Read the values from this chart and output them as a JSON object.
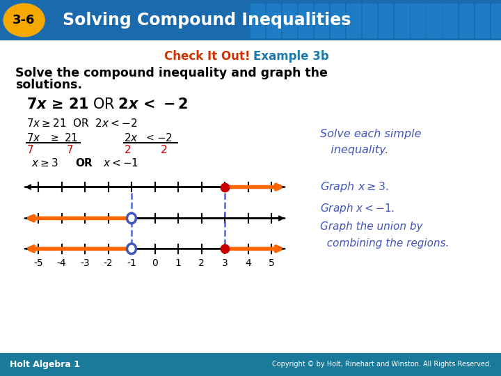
{
  "title_badge_text": "3-6",
  "title_text": "Solving Compound Inequalities",
  "header_bg_color": "#1a6aad",
  "badge_bg_color": "#f5a800",
  "badge_text_color": "#000000",
  "title_text_color": "#ffffff",
  "body_bg_color": "#ffffff",
  "check_it_out_color": "#cc3300",
  "example_color": "#1a7aad",
  "subtitle": "Check It Out! Example 3b",
  "instruction_color": "#000000",
  "step1_line3_color": "#cc0000",
  "solve_note_color": "#4455bb",
  "graph_note_color": "#4455bb",
  "number_line_ticks": [
    -5,
    -4,
    -3,
    -2,
    -1,
    0,
    1,
    2,
    3,
    4,
    5
  ],
  "orange_color": "#ff6600",
  "dot_fill_color": "#cc0000",
  "open_circle_color": "#4455bb",
  "dashed_line_color": "#5566cc",
  "footer_bg_color": "#1a7a9a",
  "footer_left": "Holt Algebra 1",
  "footer_right": "Copyright © by Holt, Rinehart and Winston. All Rights Reserved.",
  "footer_text_color": "#ffffff",
  "tile_color": "#1e7cc4"
}
